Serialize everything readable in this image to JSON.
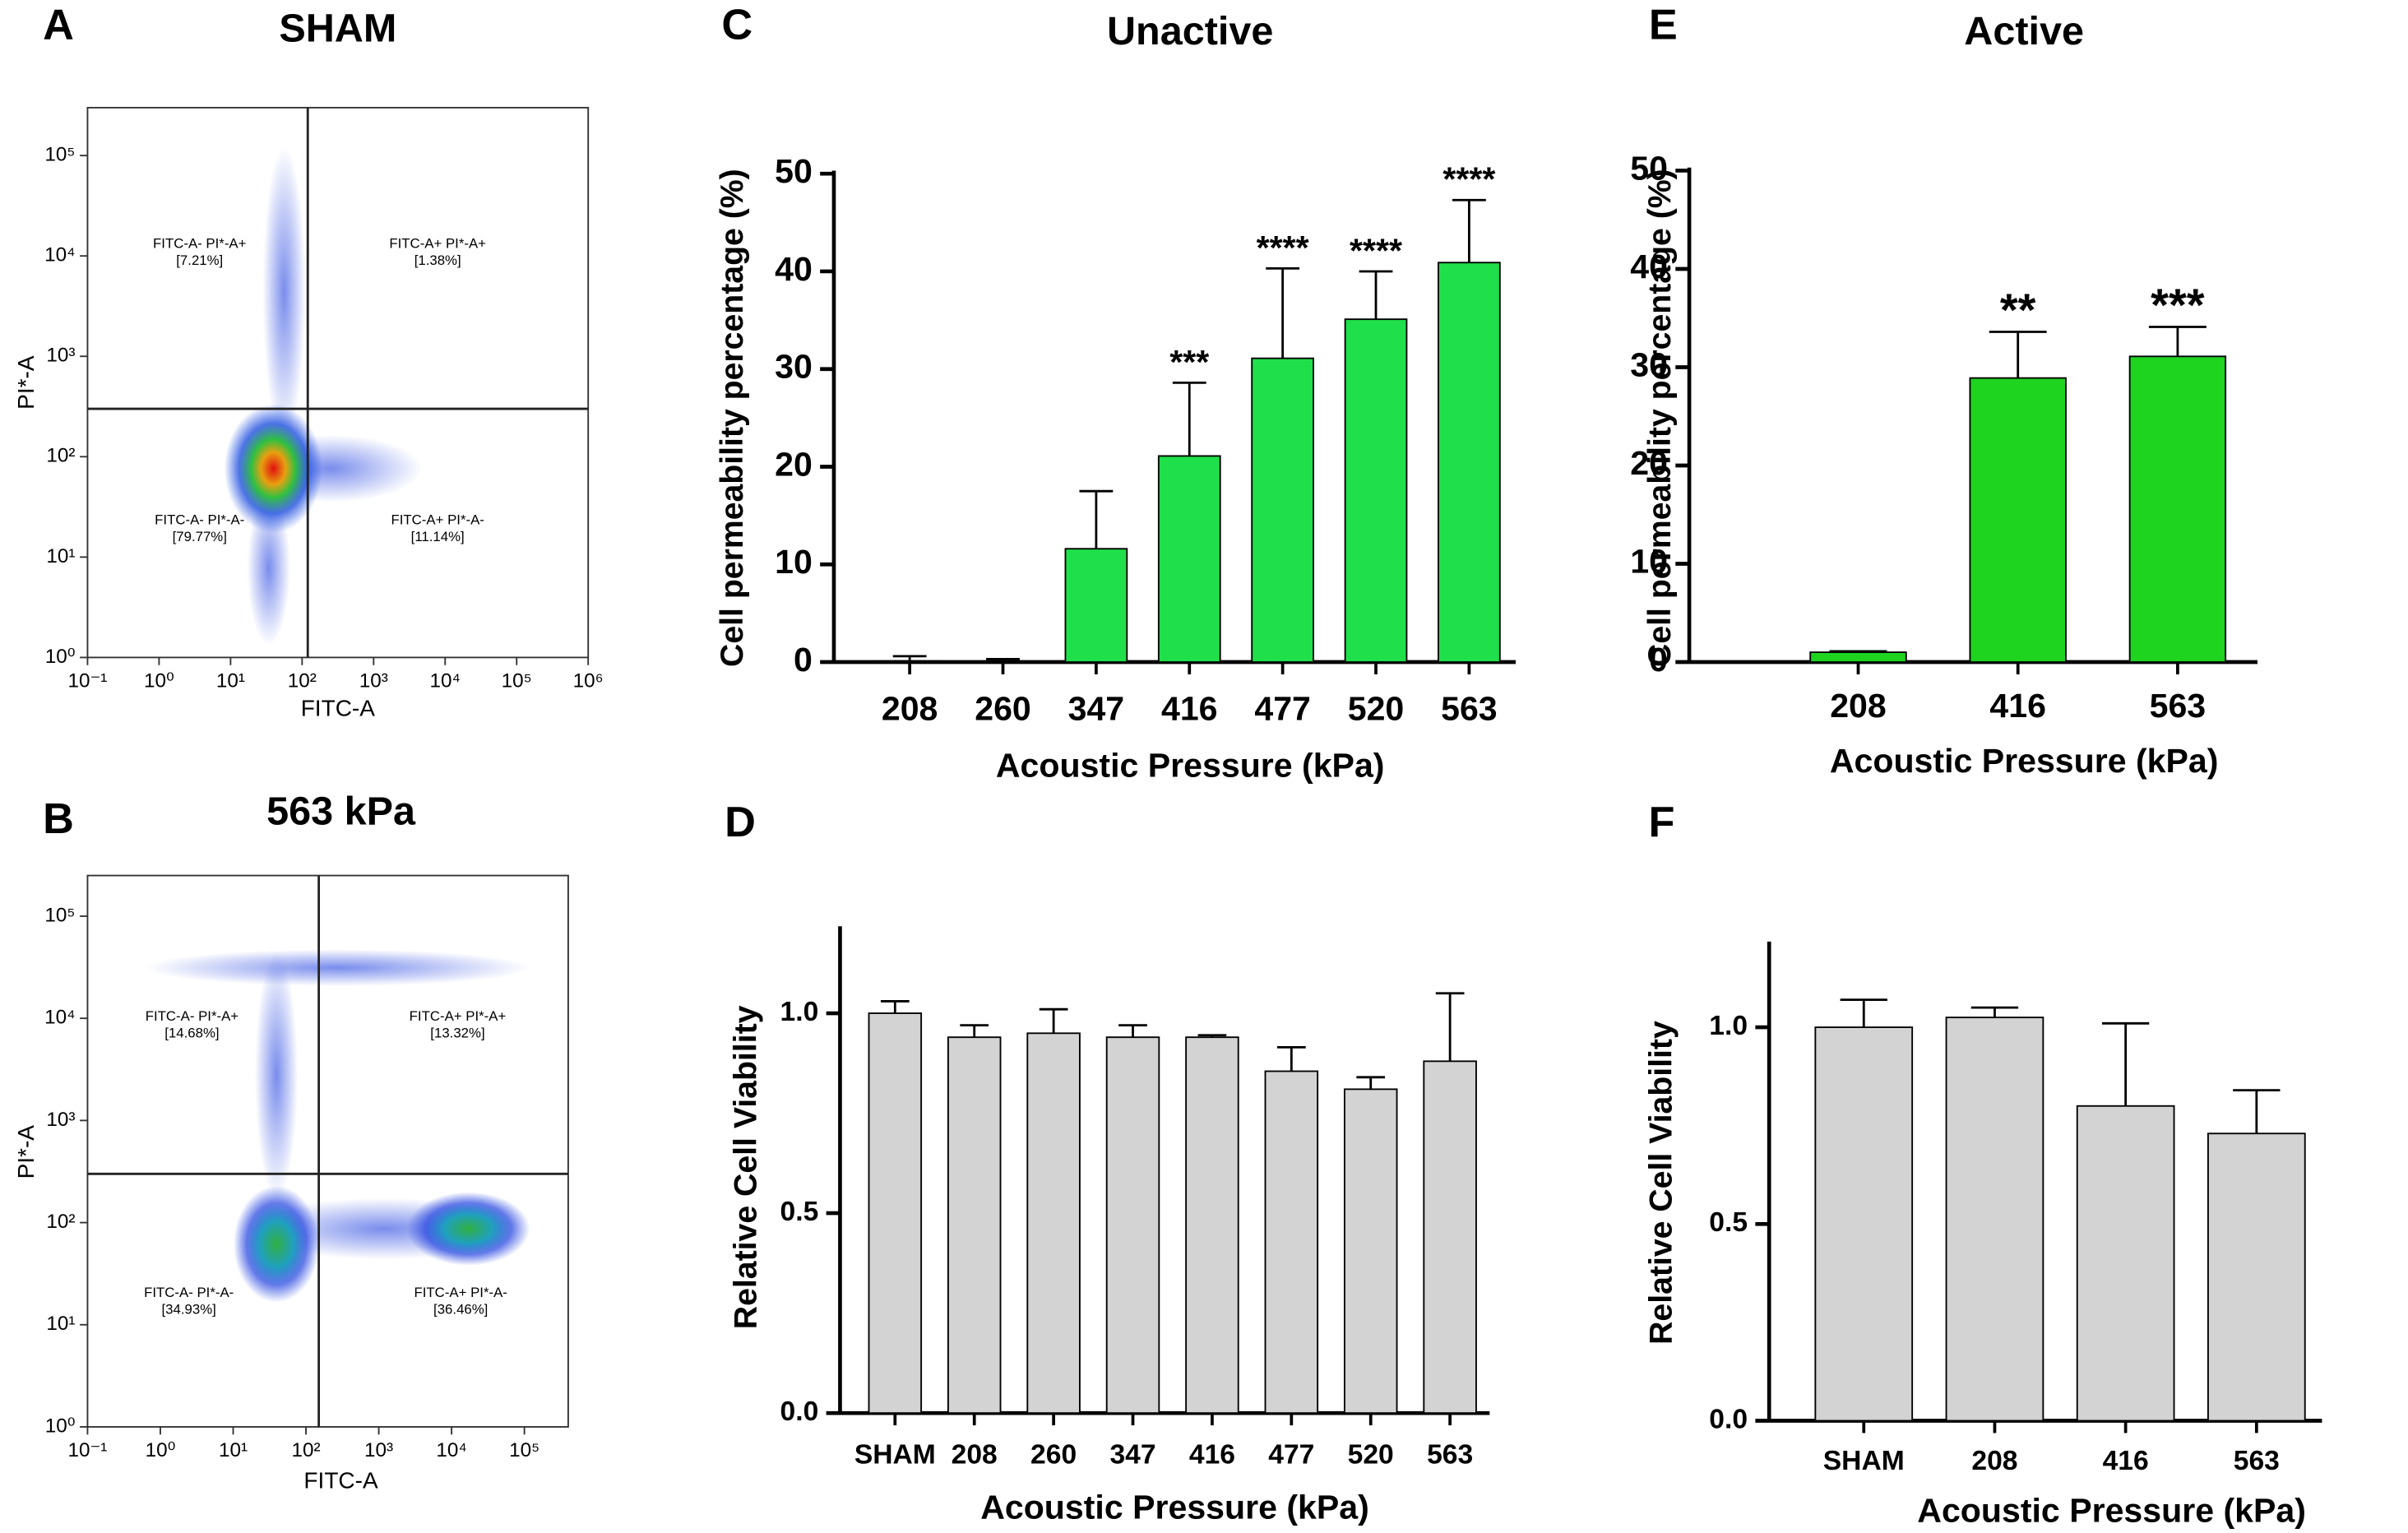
{
  "chart_data": [
    {
      "type": "scatter",
      "panel": "A",
      "title": "SHAM",
      "xlabel": "FITC-A",
      "ylabel": "PI*-A",
      "log_scale": true,
      "xlim": [
        0.1,
        1000000
      ],
      "ylim": [
        1,
        300000
      ],
      "xticks": [
        {
          "value": 0.1,
          "label": "10⁻¹"
        },
        {
          "value": 1,
          "label": "10⁰"
        },
        {
          "value": 10,
          "label": "10¹"
        },
        {
          "value": 100,
          "label": "10²"
        },
        {
          "value": 1000,
          "label": "10³"
        },
        {
          "value": 10000,
          "label": "10⁴"
        },
        {
          "value": 100000,
          "label": "10⁵"
        },
        {
          "value": 1000000,
          "label": "10⁶"
        }
      ],
      "yticks": [
        {
          "value": 1,
          "label": "10⁰"
        },
        {
          "value": 10,
          "label": "10¹"
        },
        {
          "value": 100,
          "label": "10²"
        },
        {
          "value": 1000,
          "label": "10³"
        },
        {
          "value": 10000,
          "label": "10⁴"
        },
        {
          "value": 100000,
          "label": "10⁵"
        }
      ],
      "gate_x": 120,
      "gate_y": 300,
      "quadrant_names": [
        "FITC-A- PI*-A+",
        "FITC-A+ PI*-A+",
        "FITC-A- PI*-A-",
        "FITC-A+ PI*-A-"
      ],
      "quadrant_values": [
        7.21,
        1.38,
        79.77,
        11.14
      ],
      "quadrant_value_labels": [
        "[7.21%]",
        "[1.38%]",
        "[79.77%]",
        "[11.14%]"
      ]
    },
    {
      "type": "scatter",
      "panel": "B",
      "title": "563 kPa",
      "xlabel": "FITC-A",
      "ylabel": "PI*-A",
      "log_scale": true,
      "xlim": [
        0.1,
        400000
      ],
      "ylim": [
        1,
        250000
      ],
      "xticks": [
        {
          "value": 0.1,
          "label": "10⁻¹"
        },
        {
          "value": 1,
          "label": "10⁰"
        },
        {
          "value": 10,
          "label": "10¹"
        },
        {
          "value": 100,
          "label": "10²"
        },
        {
          "value": 1000,
          "label": "10³"
        },
        {
          "value": 10000,
          "label": "10⁴"
        },
        {
          "value": 100000,
          "label": "10⁵"
        }
      ],
      "yticks": [
        {
          "value": 1,
          "label": "10⁰"
        },
        {
          "value": 10,
          "label": "10¹"
        },
        {
          "value": 100,
          "label": "10²"
        },
        {
          "value": 1000,
          "label": "10³"
        },
        {
          "value": 10000,
          "label": "10⁴"
        },
        {
          "value": 100000,
          "label": "10⁵"
        }
      ],
      "gate_x": 150,
      "gate_y": 300,
      "quadrant_names": [
        "FITC-A- PI*-A+",
        "FITC-A+ PI*-A+",
        "FITC-A- PI*-A-",
        "FITC-A+ PI*-A-"
      ],
      "quadrant_values": [
        14.68,
        13.32,
        34.93,
        36.46
      ],
      "quadrant_value_labels": [
        "[14.68%]",
        "[13.32%]",
        "[34.93%]",
        "[36.46%]"
      ]
    },
    {
      "type": "bar",
      "panel": "C",
      "title": "Unactive",
      "xlabel": "Acoustic Pressure (kPa)",
      "ylabel": "Cell permeability percentage (%)",
      "categories": [
        "208",
        "260",
        "347",
        "416",
        "477",
        "520",
        "563"
      ],
      "values": [
        0.1,
        0.05,
        11.6,
        21.1,
        31.1,
        35.1,
        40.9
      ],
      "errors": [
        0.5,
        0.25,
        5.9,
        7.5,
        9.2,
        4.9,
        6.4
      ],
      "significance": [
        null,
        null,
        null,
        "***",
        "****",
        "****",
        "****"
      ],
      "color": "#1fe04a",
      "ylim": [
        0,
        50
      ],
      "yticks": [
        0,
        10,
        20,
        30,
        40,
        50
      ]
    },
    {
      "type": "bar",
      "panel": "D",
      "xlabel": "Acoustic Pressure (kPa)",
      "ylabel": "Relative Cell Viability",
      "categories": [
        "SHAM",
        "208",
        "260",
        "347",
        "416",
        "477",
        "520",
        "563"
      ],
      "values": [
        1.0,
        0.94,
        0.95,
        0.94,
        0.94,
        0.855,
        0.81,
        0.88
      ],
      "errors": [
        0.03,
        0.03,
        0.06,
        0.03,
        0.005,
        0.06,
        0.03,
        0.17
      ],
      "color": "#d3d3d3",
      "ylim": [
        0,
        1.21
      ],
      "yticks": [
        {
          "value": 0,
          "label": "0.0"
        },
        {
          "value": 0.5,
          "label": "0.5"
        },
        {
          "value": 1,
          "label": "1.0"
        }
      ]
    },
    {
      "type": "bar",
      "panel": "E",
      "title": "Active",
      "xlabel": "Acoustic Pressure (kPa)",
      "ylabel": "Cell permeability percentage (%)",
      "categories": [
        "208",
        "416",
        "563"
      ],
      "values": [
        1.0,
        28.9,
        31.1
      ],
      "errors": [
        0.1,
        4.7,
        3.0
      ],
      "significance": [
        null,
        "**",
        "***"
      ],
      "color": "#1fd41f",
      "ylim": [
        0,
        50
      ],
      "yticks": [
        0,
        10,
        20,
        30,
        40,
        50
      ]
    },
    {
      "type": "bar",
      "panel": "F",
      "xlabel": "Acoustic Pressure (kPa)",
      "ylabel": "Relative Cell Viability",
      "categories": [
        "SHAM",
        "208",
        "416",
        "563"
      ],
      "values": [
        1.0,
        1.025,
        0.8,
        0.73
      ],
      "errors": [
        0.07,
        0.025,
        0.21,
        0.11
      ],
      "color": "#d3d3d3",
      "ylim": [
        0,
        1.21
      ],
      "yticks": [
        {
          "value": 0,
          "label": "0.0"
        },
        {
          "value": 0.5,
          "label": "0.5"
        },
        {
          "value": 1,
          "label": "1.0"
        }
      ]
    }
  ]
}
